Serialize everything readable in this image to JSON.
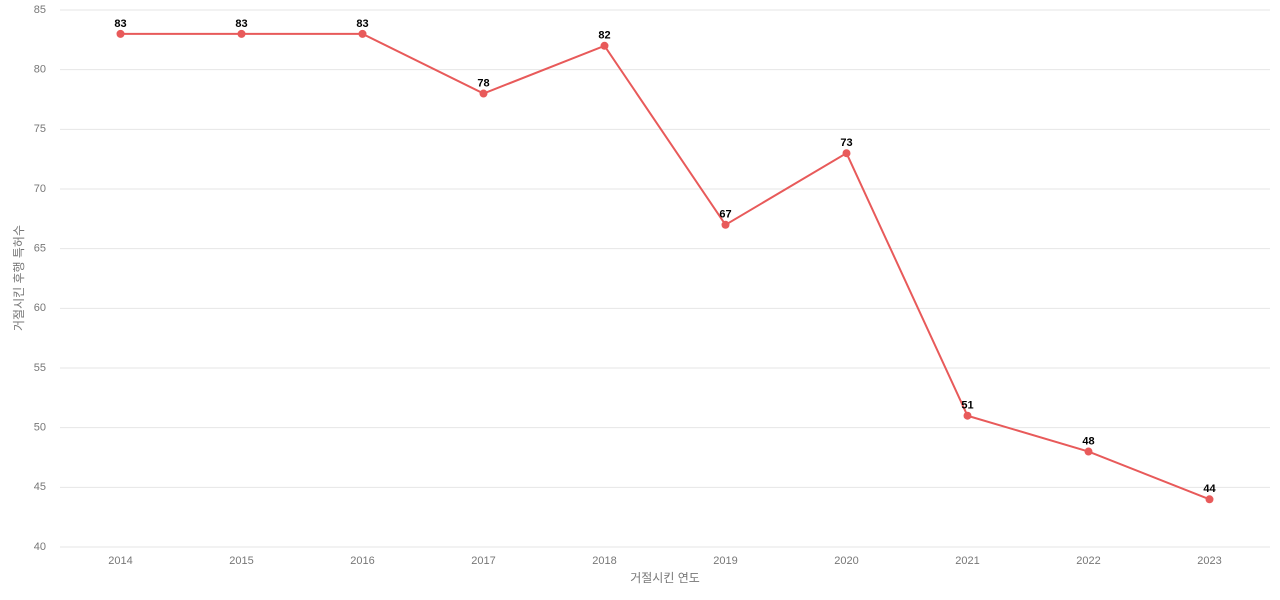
{
  "chart_data": {
    "type": "line",
    "x_label": "거절시킨 연도",
    "y_label": "거절시킨 후행 특허수",
    "categories": [
      "2014",
      "2015",
      "2016",
      "2017",
      "2018",
      "2019",
      "2020",
      "2021",
      "2022",
      "2023"
    ],
    "series": [
      {
        "name": "거절시킨 후행 특허수",
        "color": "#e85a5a",
        "values": [
          83,
          83,
          83,
          78,
          82,
          67,
          73,
          51,
          48,
          44
        ]
      }
    ],
    "ylim": [
      40,
      85
    ],
    "yticks": [
      40,
      45,
      50,
      55,
      60,
      65,
      70,
      75,
      80,
      85
    ],
    "grid": true
  }
}
